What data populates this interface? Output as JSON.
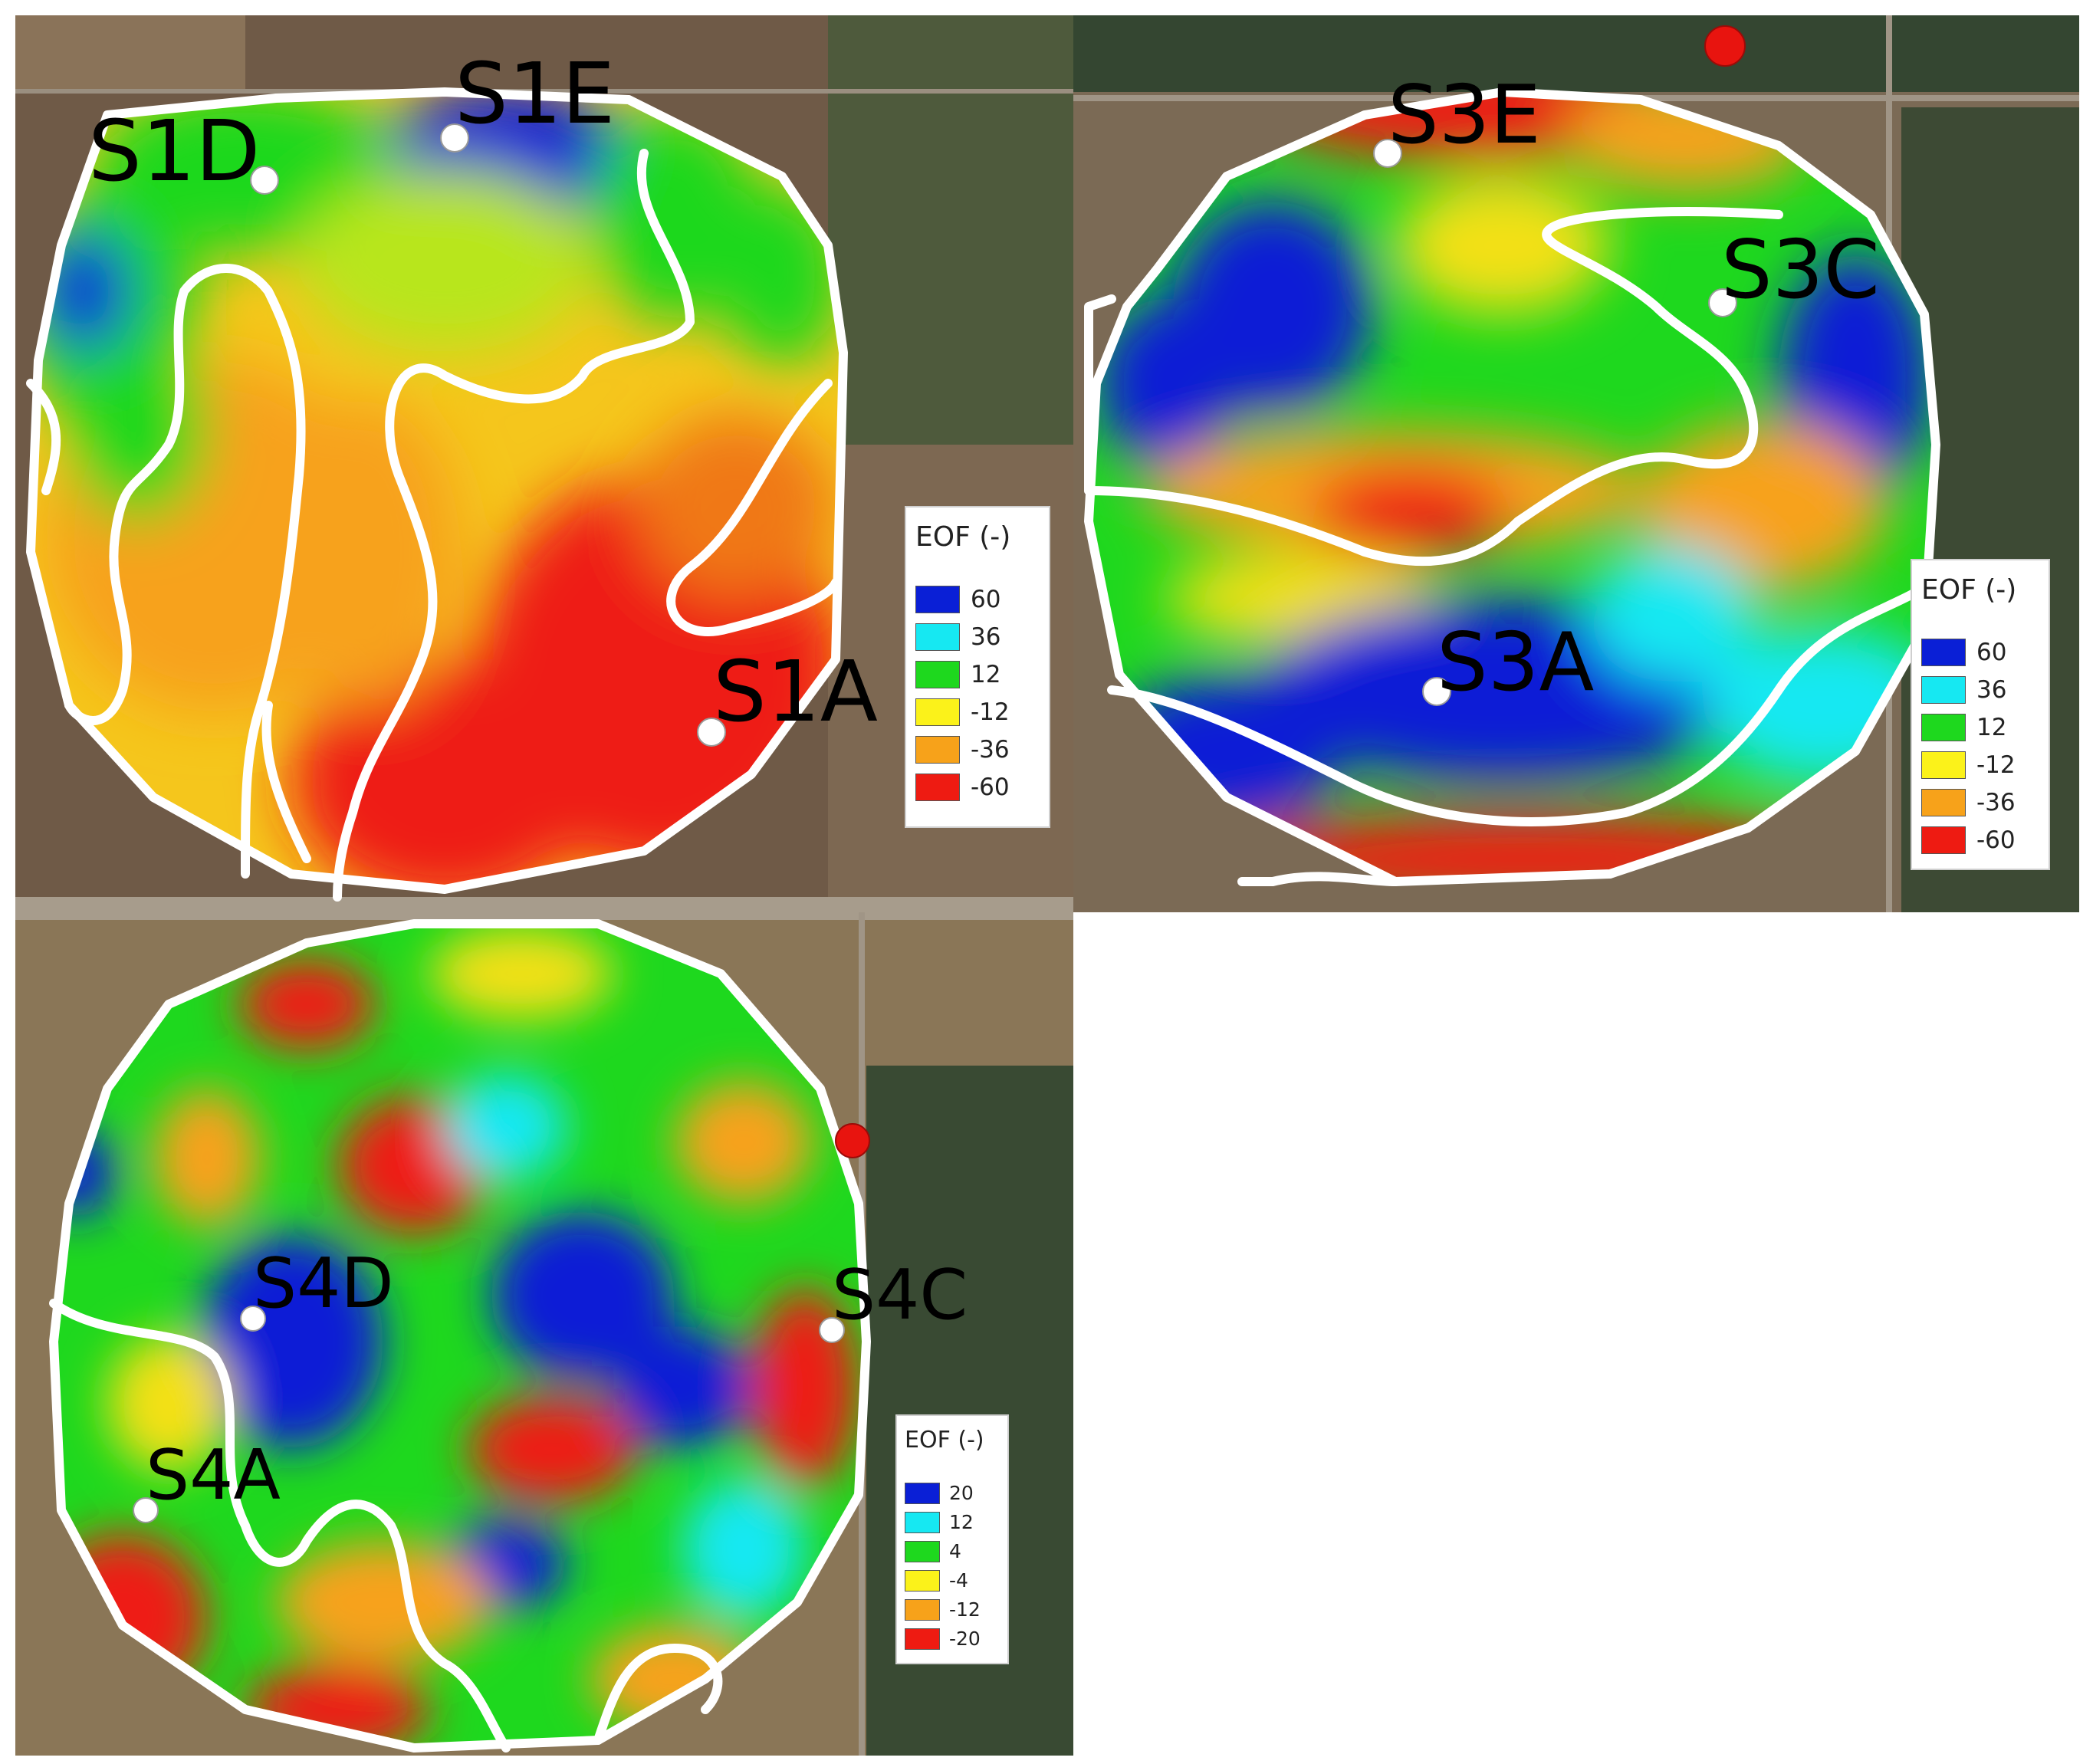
{
  "colors": {
    "c60": "#0a1fd6",
    "c36": "#16e8f2",
    "c12": "#1ed81e",
    "cm12": "#fbf21a",
    "cm36": "#f7a21a",
    "cm60": "#ee1b12",
    "boundary": "#ffffff",
    "marker": "#e8140f"
  },
  "panels": [
    {
      "id": "field-1",
      "sites": [
        "S1D",
        "S1E",
        "S1A"
      ],
      "legend": {
        "title": "EOF (-)",
        "items": [
          {
            "label": "60",
            "color": "#0a1fd6"
          },
          {
            "label": "36",
            "color": "#16e8f2"
          },
          {
            "label": "12",
            "color": "#1ed81e"
          },
          {
            "label": "-12",
            "color": "#fbf21a"
          },
          {
            "label": "-36",
            "color": "#f7a21a"
          },
          {
            "label": "-60",
            "color": "#ee1b12"
          }
        ]
      }
    },
    {
      "id": "field-3",
      "sites": [
        "S3E",
        "S3C",
        "S3A"
      ],
      "legend": {
        "title": "EOF (-)",
        "items": [
          {
            "label": "60",
            "color": "#0a1fd6"
          },
          {
            "label": "36",
            "color": "#16e8f2"
          },
          {
            "label": "12",
            "color": "#1ed81e"
          },
          {
            "label": "-12",
            "color": "#fbf21a"
          },
          {
            "label": "-36",
            "color": "#f7a21a"
          },
          {
            "label": "-60",
            "color": "#ee1b12"
          }
        ]
      }
    },
    {
      "id": "field-4",
      "sites": [
        "S4D",
        "S4C",
        "S4A"
      ],
      "legend": {
        "title": "EOF (-)",
        "items": [
          {
            "label": "20",
            "color": "#0a1fd6"
          },
          {
            "label": "12",
            "color": "#16e8f2"
          },
          {
            "label": "4",
            "color": "#1ed81e"
          },
          {
            "label": "-4",
            "color": "#fbf21a"
          },
          {
            "label": "-12",
            "color": "#f7a21a"
          },
          {
            "label": "-20",
            "color": "#ee1b12"
          }
        ]
      }
    }
  ]
}
